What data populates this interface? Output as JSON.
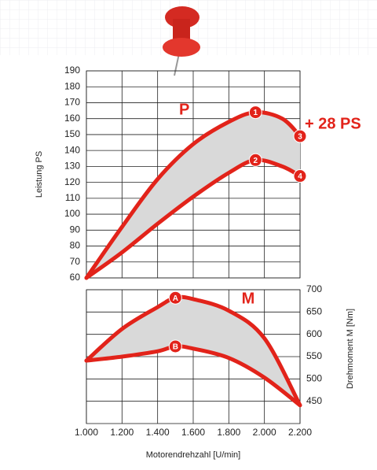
{
  "chart_data": [
    {
      "type": "line",
      "ylabel": "Leistung PS",
      "x": [
        1000,
        1200,
        1400,
        1600,
        1800,
        1950,
        2100,
        2200
      ],
      "xlim": [
        1000,
        2200
      ],
      "xticks": [
        1000,
        1200,
        1400,
        1600,
        1800,
        2000,
        2200
      ],
      "ylim": [
        60,
        190
      ],
      "yticks": [
        60,
        70,
        80,
        90,
        100,
        110,
        120,
        130,
        140,
        150,
        160,
        170,
        180,
        190
      ],
      "grid": true,
      "fill_between": "#d9d9d9",
      "annotations": [
        "P",
        "+ 28 PS"
      ],
      "series": [
        {
          "color": "#e2231a",
          "values": [
            60,
            92,
            122,
            144,
            158,
            164,
            160,
            149
          ],
          "point_labels": [
            null,
            null,
            null,
            null,
            null,
            "1",
            null,
            "3"
          ]
        },
        {
          "color": "#e2231a",
          "values": [
            60,
            76,
            94,
            111,
            126,
            134,
            130,
            124
          ],
          "point_labels": [
            null,
            null,
            null,
            null,
            null,
            "2",
            null,
            "4"
          ]
        }
      ]
    },
    {
      "type": "line",
      "xlabel": "Motorendrehzahl [U/min]",
      "y2label": "Drehmoment M [Nm]",
      "x": [
        1000,
        1200,
        1400,
        1500,
        1600,
        1800,
        2000,
        2200
      ],
      "xlim": [
        1000,
        2200
      ],
      "xticks": [
        {
          "value": 1000,
          "label": "1.000"
        },
        {
          "value": 1200,
          "label": "1.200"
        },
        {
          "value": 1400,
          "label": "1.400"
        },
        {
          "value": 1600,
          "label": "1.600"
        },
        {
          "value": 1800,
          "label": "1.800"
        },
        {
          "value": 2000,
          "label": "2.000"
        },
        {
          "value": 2200,
          "label": "2.200"
        }
      ],
      "y2lim": [
        400,
        700
      ],
      "y2ticks": [
        450,
        500,
        550,
        600,
        650,
        700
      ],
      "grid": true,
      "fill_between": "#d9d9d9",
      "annotations": [
        "M"
      ],
      "series": [
        {
          "color": "#e2231a",
          "axis": "y2",
          "values": [
            541,
            612,
            661,
            682,
            679,
            653,
            591,
            441
          ],
          "point_labels": [
            null,
            null,
            null,
            "A",
            null,
            null,
            null,
            null
          ]
        },
        {
          "color": "#e2231a",
          "axis": "y2",
          "values": [
            541,
            550,
            562,
            573,
            568,
            547,
            503,
            441
          ],
          "point_labels": [
            null,
            null,
            null,
            "B",
            null,
            null,
            null,
            null
          ]
        }
      ]
    }
  ]
}
